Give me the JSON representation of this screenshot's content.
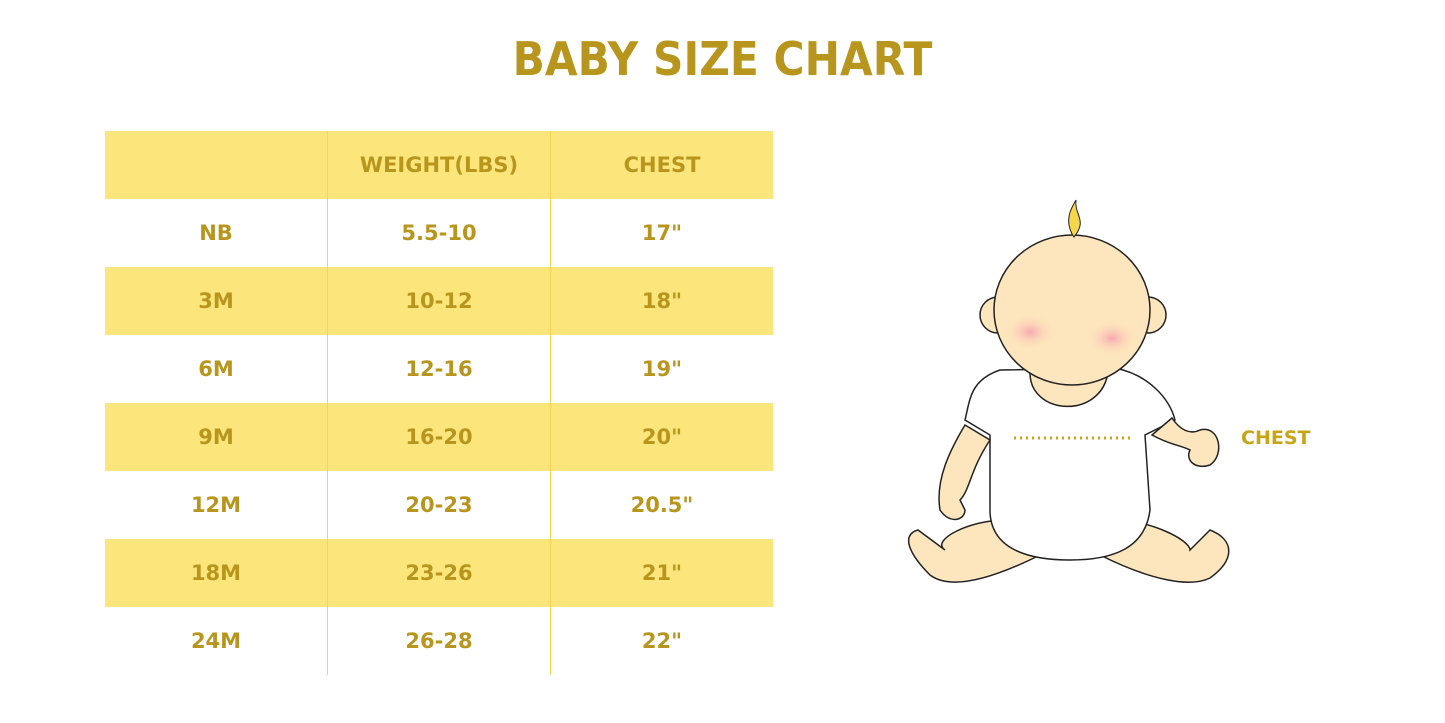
{
  "title": "BABY SIZE CHART",
  "table": {
    "headers": [
      "",
      "WEIGHT(LBS)",
      "CHEST"
    ],
    "rows": [
      [
        "NB",
        "5.5-10",
        "17\""
      ],
      [
        "3M",
        "10-12",
        "18\""
      ],
      [
        "6M",
        "12-16",
        "19\""
      ],
      [
        "9M",
        "16-20",
        "20\""
      ],
      [
        "12M",
        "20-23",
        "20.5\""
      ],
      [
        "18M",
        "23-26",
        "21\""
      ],
      [
        "24M",
        "26-28",
        "22\""
      ]
    ]
  },
  "illustration": {
    "chest_label": "CHEST"
  },
  "colors": {
    "accent": "#b8961e",
    "row_fill": "#fce67c",
    "skin": "#fde5bd",
    "cheek": "#f7a8b0"
  }
}
